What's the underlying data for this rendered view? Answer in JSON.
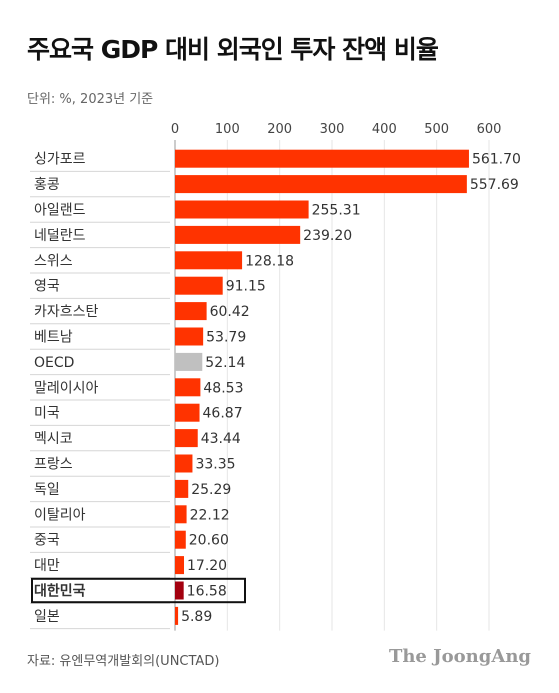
{
  "header": {
    "title": "주요국 GDP 대비 외국인 투자 잔액 비율",
    "unit": "단위: %, 2023년 기준"
  },
  "footer": {
    "source": "자료: 유엔무역개발회의(UNCTAD)",
    "logo": "The JoongAng"
  },
  "colors": {
    "bar": "#ff3300",
    "highlight": "#a3000f",
    "reference": "#c0c0c0",
    "grid": "#e6e6e6",
    "row_line": "#d6d6d6"
  },
  "chart_data": {
    "type": "bar",
    "orientation": "horizontal",
    "xlim": [
      0,
      600
    ],
    "ticks": [
      "0",
      "100",
      "200",
      "300",
      "400",
      "500",
      "600"
    ],
    "grid": true,
    "categories": [
      "싱가포르",
      "홍콩",
      "아일랜드",
      "네덜란드",
      "스위스",
      "영국",
      "카자흐스탄",
      "베트남",
      "OECD",
      "말레이시아",
      "미국",
      "멕시코",
      "프랑스",
      "독일",
      "이탈리아",
      "중국",
      "대만",
      "대한민국",
      "일본"
    ],
    "values": [
      561.7,
      557.69,
      255.31,
      239.2,
      128.18,
      91.15,
      60.42,
      53.79,
      52.14,
      48.53,
      46.87,
      43.44,
      33.35,
      25.29,
      22.12,
      20.6,
      17.2,
      16.58,
      5.89
    ],
    "labels": [
      "561.70",
      "557.69",
      "255.31",
      "239.20",
      "128.18",
      "91.15",
      "60.42",
      "53.79",
      "52.14",
      "48.53",
      "46.87",
      "43.44",
      "33.35",
      "25.29",
      "22.12",
      "20.60",
      "17.20",
      "16.58",
      "5.89"
    ],
    "highlight": "대한민국",
    "reference": "OECD"
  }
}
